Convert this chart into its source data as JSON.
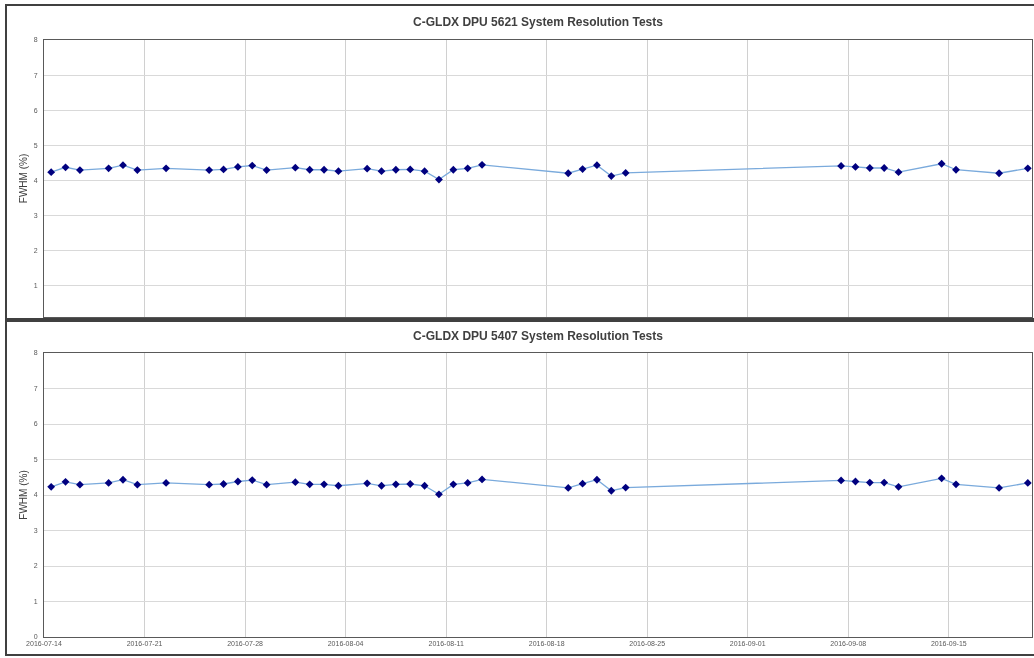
{
  "chart_data": [
    {
      "type": "line",
      "title": "C-GLDX DPU 5621 System Resolution Tests",
      "ylabel": "FWHM (%)",
      "x": [
        "2016-07-14T12:00",
        "2016-07-15T12:00",
        "2016-07-16T12:00",
        "2016-07-18T12:00",
        "2016-07-19T12:00",
        "2016-07-20T12:00",
        "2016-07-22T12:00",
        "2016-07-25T12:00",
        "2016-07-26T12:00",
        "2016-07-27T12:00",
        "2016-07-28T12:00",
        "2016-07-29T12:00",
        "2016-07-31T12:00",
        "2016-08-01T12:00",
        "2016-08-02T12:00",
        "2016-08-03T12:00",
        "2016-08-05T12:00",
        "2016-08-06T12:00",
        "2016-08-07T12:00",
        "2016-08-08T12:00",
        "2016-08-09T12:00",
        "2016-08-10T12:00",
        "2016-08-11T12:00",
        "2016-08-12T12:00",
        "2016-08-13T12:00",
        "2016-08-19T12:00",
        "2016-08-20T12:00",
        "2016-08-21T12:00",
        "2016-08-22T12:00",
        "2016-08-23T12:00",
        "2016-09-07T12:00",
        "2016-09-08T12:00",
        "2016-09-09T12:00",
        "2016-09-10T12:00",
        "2016-09-11T12:00",
        "2016-09-14T12:00",
        "2016-09-15T12:00",
        "2016-09-18T12:00",
        "2016-09-20T12:00"
      ],
      "series": [
        {
          "color": "#7aaadc",
          "colors": [
            "#00007f",
            "#00007f",
            "#00007f",
            "#00007f",
            "#00007f",
            "#00007f",
            "#00007f",
            "#00007f",
            "#00007f",
            "#00007f",
            "#00007f",
            "#00007f",
            "#00007f",
            "#00007f",
            "#00007f",
            "#00007f",
            "#00007f",
            "#00007f",
            "#00007f",
            "#00007f",
            "#00007f",
            "#00007f",
            "#00007f",
            "#00007f",
            "#00007f",
            "#00007f",
            "#00007f",
            "#00007f",
            "#00007f",
            "#00007f",
            "#00007f",
            "#00007f",
            "#00007f",
            "#00007f",
            "#00007f",
            "#00007f",
            "#00007f",
            "#00007f",
            "#00007f"
          ],
          "values": [
            4.23,
            4.37,
            4.29,
            4.34,
            4.43,
            4.29,
            4.34,
            4.29,
            4.31,
            4.38,
            4.42,
            4.29,
            4.36,
            4.3,
            4.3,
            4.26,
            4.33,
            4.26,
            4.3,
            4.31,
            4.26,
            4.02,
            4.3,
            4.34,
            4.44,
            4.2,
            4.32,
            4.43,
            4.12,
            4.21,
            4.41,
            4.38,
            4.35,
            4.35,
            4.23,
            4.47,
            4.3,
            4.2,
            4.34
          ]
        }
      ],
      "xlim": [
        "2016-07-14",
        "2016-09-20T19:00"
      ],
      "xticks": [
        "2016-07-14",
        "2016-07-21",
        "2016-07-28",
        "2016-08-04",
        "2016-08-11",
        "2016-08-18",
        "2016-08-25",
        "2016-09-01",
        "2016-09-08",
        "2016-09-15"
      ],
      "ylim": [
        0.1,
        8
      ],
      "yticks": [
        1,
        2,
        3,
        4,
        5,
        6,
        7,
        8
      ],
      "grid": true,
      "marker": "diamond",
      "line_style": "solid",
      "tick_labels": "y"
    },
    {
      "type": "line",
      "title": "C-GLDX DPU 5407 System Resolution Tests",
      "ylabel": "FWHM (%)",
      "x": [
        "2016-07-14T12:00",
        "2016-07-15T12:00",
        "2016-07-16T12:00",
        "2016-07-18T12:00",
        "2016-07-19T12:00",
        "2016-07-20T12:00",
        "2016-07-22T12:00",
        "2016-07-25T12:00",
        "2016-07-26T12:00",
        "2016-07-27T12:00",
        "2016-07-28T12:00",
        "2016-07-29T12:00",
        "2016-07-31T12:00",
        "2016-08-01T12:00",
        "2016-08-02T12:00",
        "2016-08-03T12:00",
        "2016-08-05T12:00",
        "2016-08-06T12:00",
        "2016-08-07T12:00",
        "2016-08-08T12:00",
        "2016-08-09T12:00",
        "2016-08-10T12:00",
        "2016-08-11T12:00",
        "2016-08-12T12:00",
        "2016-08-13T12:00",
        "2016-08-19T12:00",
        "2016-08-20T12:00",
        "2016-08-21T12:00",
        "2016-08-22T12:00",
        "2016-08-23T12:00",
        "2016-09-07T12:00",
        "2016-09-08T12:00",
        "2016-09-09T12:00",
        "2016-09-10T12:00",
        "2016-09-11T12:00",
        "2016-09-14T12:00",
        "2016-09-15T12:00",
        "2016-09-18T12:00",
        "2016-09-20T12:00"
      ],
      "series": [
        {
          "color": "#7aaadc",
          "colors": [
            "#00007f",
            "#00007f",
            "#00007f",
            "#00007f",
            "#00007f",
            "#00007f",
            "#00007f",
            "#00007f",
            "#00007f",
            "#00007f",
            "#00007f",
            "#00007f",
            "#00007f",
            "#00007f",
            "#00007f",
            "#00007f",
            "#00007f",
            "#00007f",
            "#00007f",
            "#00007f",
            "#00007f",
            "#00007f",
            "#00007f",
            "#00007f",
            "#00007f",
            "#00007f",
            "#00007f",
            "#00007f",
            "#00007f",
            "#00007f",
            "#00007f",
            "#00007f",
            "#00007f",
            "#00007f",
            "#00007f",
            "#00007f",
            "#00007f",
            "#00007f",
            "#00007f"
          ],
          "values": [
            4.23,
            4.37,
            4.29,
            4.34,
            4.43,
            4.29,
            4.34,
            4.29,
            4.31,
            4.38,
            4.42,
            4.29,
            4.36,
            4.3,
            4.3,
            4.26,
            4.33,
            4.26,
            4.3,
            4.31,
            4.26,
            4.02,
            4.3,
            4.34,
            4.44,
            4.2,
            4.32,
            4.43,
            4.12,
            4.21,
            4.41,
            4.38,
            4.35,
            4.35,
            4.23,
            4.47,
            4.3,
            4.2,
            4.34
          ]
        }
      ],
      "xlim": [
        "2016-07-14",
        "2016-09-20T19:00"
      ],
      "xticks": [
        "2016-07-14",
        "2016-07-21",
        "2016-07-28",
        "2016-08-04",
        "2016-08-11",
        "2016-08-18",
        "2016-08-25",
        "2016-09-01",
        "2016-09-08",
        "2016-09-15"
      ],
      "ylim": [
        0,
        8
      ],
      "yticks": [
        0,
        1,
        2,
        3,
        4,
        5,
        6,
        7,
        8
      ],
      "grid": true,
      "marker": "diamond",
      "line_style": "solid"
    }
  ]
}
